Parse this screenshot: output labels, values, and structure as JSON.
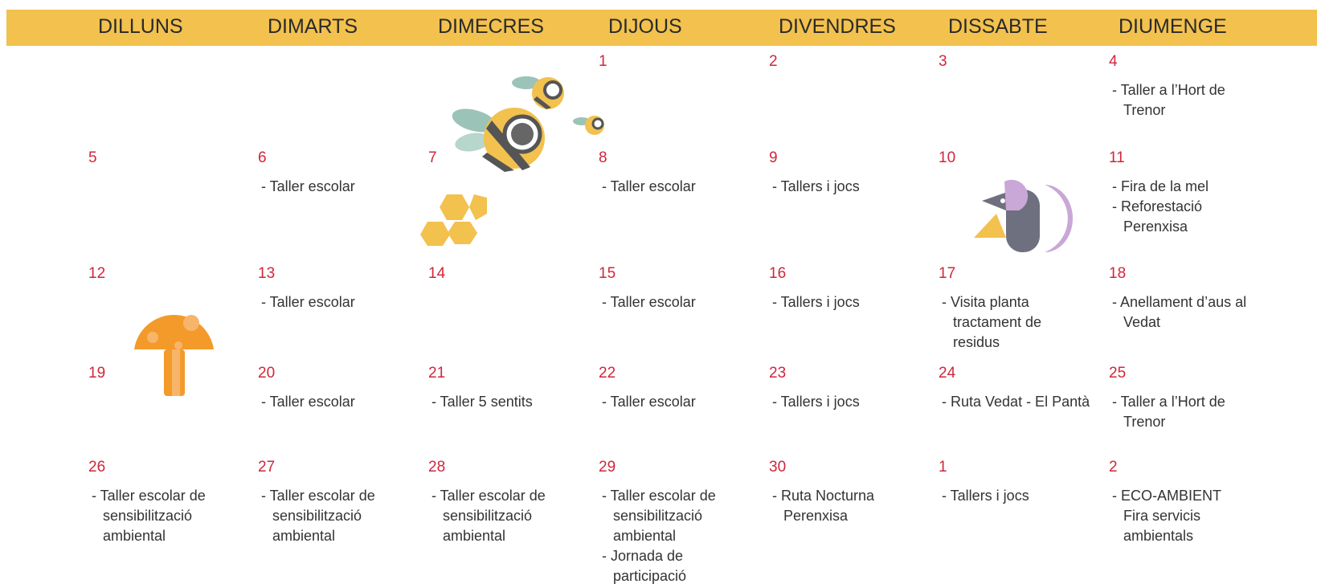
{
  "header": {
    "days": [
      "DILLUNS",
      "DIMARTS",
      "DIMECRES",
      "DIJOUS",
      "DIVENDRES",
      "DISSABTE",
      "DIUMENGE"
    ]
  },
  "weeks": [
    [
      null,
      null,
      null,
      {
        "day": "1",
        "events": []
      },
      {
        "day": "2",
        "events": []
      },
      {
        "day": "3",
        "events": []
      },
      {
        "day": "4",
        "events": [
          "- Taller a l’Hort de Trenor"
        ]
      }
    ],
    [
      {
        "day": "5",
        "events": []
      },
      {
        "day": "6",
        "events": [
          "- Taller escolar"
        ]
      },
      {
        "day": "7",
        "events": []
      },
      {
        "day": "8",
        "events": [
          "- Taller escolar"
        ]
      },
      {
        "day": "9",
        "events": [
          "- Tallers i jocs"
        ]
      },
      {
        "day": "10",
        "events": []
      },
      {
        "day": "11",
        "events": [
          "- Fira de la mel",
          "- Reforestació Perenxisa"
        ]
      }
    ],
    [
      {
        "day": "12",
        "events": []
      },
      {
        "day": "13",
        "events": [
          "- Taller escolar"
        ]
      },
      {
        "day": "14",
        "events": []
      },
      {
        "day": "15",
        "events": [
          "- Taller escolar"
        ]
      },
      {
        "day": "16",
        "events": [
          "- Tallers i jocs"
        ]
      },
      {
        "day": "17",
        "events": [
          "- Visita planta tractament de residus"
        ]
      },
      {
        "day": "18",
        "events": [
          "- Anellament d’aus al Vedat"
        ]
      }
    ],
    [
      {
        "day": "19",
        "events": []
      },
      {
        "day": "20",
        "events": [
          "- Taller escolar"
        ]
      },
      {
        "day": "21",
        "events": [
          "- Taller 5 sentits"
        ]
      },
      {
        "day": "22",
        "events": [
          "- Taller escolar"
        ]
      },
      {
        "day": "23",
        "events": [
          "- Tallers i jocs"
        ]
      },
      {
        "day": "24",
        "events": [
          "- Ruta Vedat - El Pantà"
        ]
      },
      {
        "day": "25",
        "events": [
          "- Taller a l’Hort de Trenor"
        ]
      }
    ],
    [
      {
        "day": "26",
        "events": [
          "- Taller escolar de sensibilització ambiental"
        ]
      },
      {
        "day": "27",
        "events": [
          "- Taller escolar de sensibilització ambiental"
        ]
      },
      {
        "day": "28",
        "events": [
          "- Taller escolar de sensibilització ambiental"
        ]
      },
      {
        "day": "29",
        "events": [
          "- Taller escolar de sensibilització ambiental",
          "- Jornada de participació"
        ]
      },
      {
        "day": "30",
        "events": [
          "- Ruta Nocturna Perenxisa"
        ]
      },
      {
        "day": "1",
        "events": [
          "- Tallers i jocs"
        ]
      },
      {
        "day": "2",
        "events": [
          "- ECO-AMBIENT\nFira servicis ambientals"
        ]
      }
    ]
  ]
}
